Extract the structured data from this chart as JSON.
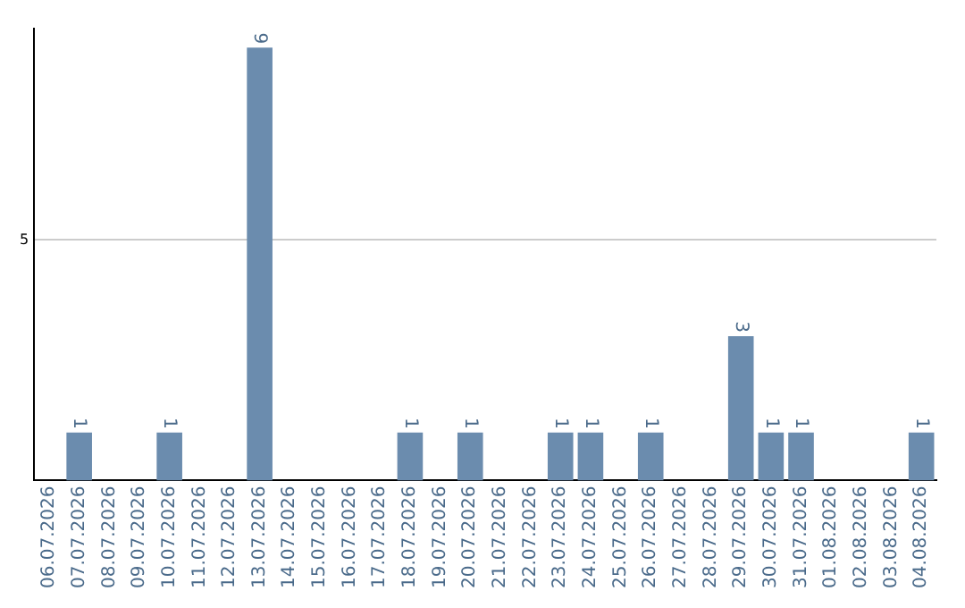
{
  "chart_data": {
    "type": "bar",
    "categories": [
      "06.07.2026",
      "07.07.2026",
      "08.07.2026",
      "09.07.2026",
      "10.07.2026",
      "11.07.2026",
      "12.07.2026",
      "13.07.2026",
      "14.07.2026",
      "15.07.2026",
      "16.07.2026",
      "17.07.2026",
      "18.07.2026",
      "19.07.2026",
      "20.07.2026",
      "21.07.2026",
      "22.07.2026",
      "23.07.2026",
      "24.07.2026",
      "25.07.2026",
      "26.07.2026",
      "27.07.2026",
      "28.07.2026",
      "29.07.2026",
      "30.07.2026",
      "31.07.2026",
      "01.08.2026",
      "02.08.2026",
      "03.08.2026",
      "04.08.2026"
    ],
    "values": [
      0,
      1,
      0,
      0,
      1,
      0,
      0,
      9,
      0,
      0,
      0,
      0,
      1,
      0,
      1,
      0,
      0,
      1,
      1,
      0,
      1,
      0,
      0,
      3,
      1,
      1,
      0,
      0,
      0,
      1
    ],
    "value_labels": [
      null,
      "1",
      null,
      null,
      "1",
      null,
      null,
      "9",
      null,
      null,
      null,
      null,
      "1",
      null,
      "1",
      null,
      null,
      "1",
      "1",
      null,
      "1",
      null,
      null,
      "3",
      "1",
      "1",
      null,
      null,
      null,
      "1"
    ],
    "color": "#6b8cae",
    "ylim": [
      0,
      9.4
    ],
    "yticks": [
      5
    ],
    "grid": "y",
    "legend": false
  }
}
